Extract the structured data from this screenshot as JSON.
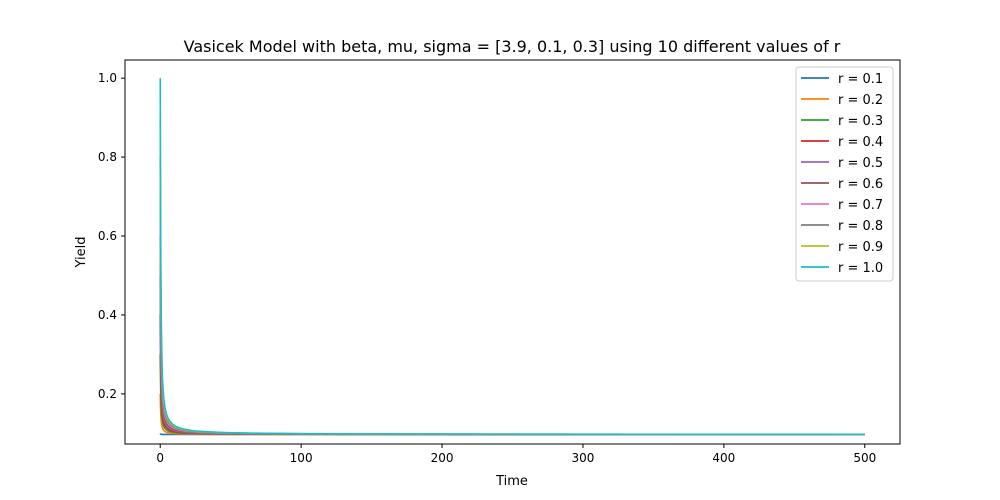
{
  "chart_data": {
    "type": "line",
    "title": "Vasicek Model with beta, mu, sigma = [3.9, 0.1, 0.3] using 10 different values of r",
    "xlabel": "Time",
    "ylabel": "Yield",
    "xlim": [
      -25,
      525
    ],
    "ylim": [
      0.073,
      1.046
    ],
    "xticks": [
      0,
      100,
      200,
      300,
      400,
      500
    ],
    "yticks": [
      0.2,
      0.4,
      0.6,
      0.8,
      1.0
    ],
    "ytick_labels": [
      "0.2",
      "0.4",
      "0.6",
      "0.8",
      "1.0"
    ],
    "grid": false,
    "legend_position": "top-right",
    "model": {
      "beta": 3.9,
      "mu": 0.1,
      "sigma": 0.3,
      "t_max": 500
    },
    "series": [
      {
        "name": "r = 0.1",
        "r0": 0.1,
        "color": "#1f77b4"
      },
      {
        "name": "r = 0.2",
        "r0": 0.2,
        "color": "#ff7f0e"
      },
      {
        "name": "r = 0.3",
        "r0": 0.3,
        "color": "#2ca02c"
      },
      {
        "name": "r = 0.4",
        "r0": 0.4,
        "color": "#d62728"
      },
      {
        "name": "r = 0.5",
        "r0": 0.5,
        "color": "#9467bd"
      },
      {
        "name": "r = 0.6",
        "r0": 0.6,
        "color": "#8c564b"
      },
      {
        "name": "r = 0.7",
        "r0": 0.7,
        "color": "#e377c2"
      },
      {
        "name": "r = 0.8",
        "r0": 0.8,
        "color": "#7f7f7f"
      },
      {
        "name": "r = 0.9",
        "r0": 0.9,
        "color": "#bcbd22"
      },
      {
        "name": "r = 1.0",
        "r0": 1.0,
        "color": "#17becf"
      }
    ]
  }
}
